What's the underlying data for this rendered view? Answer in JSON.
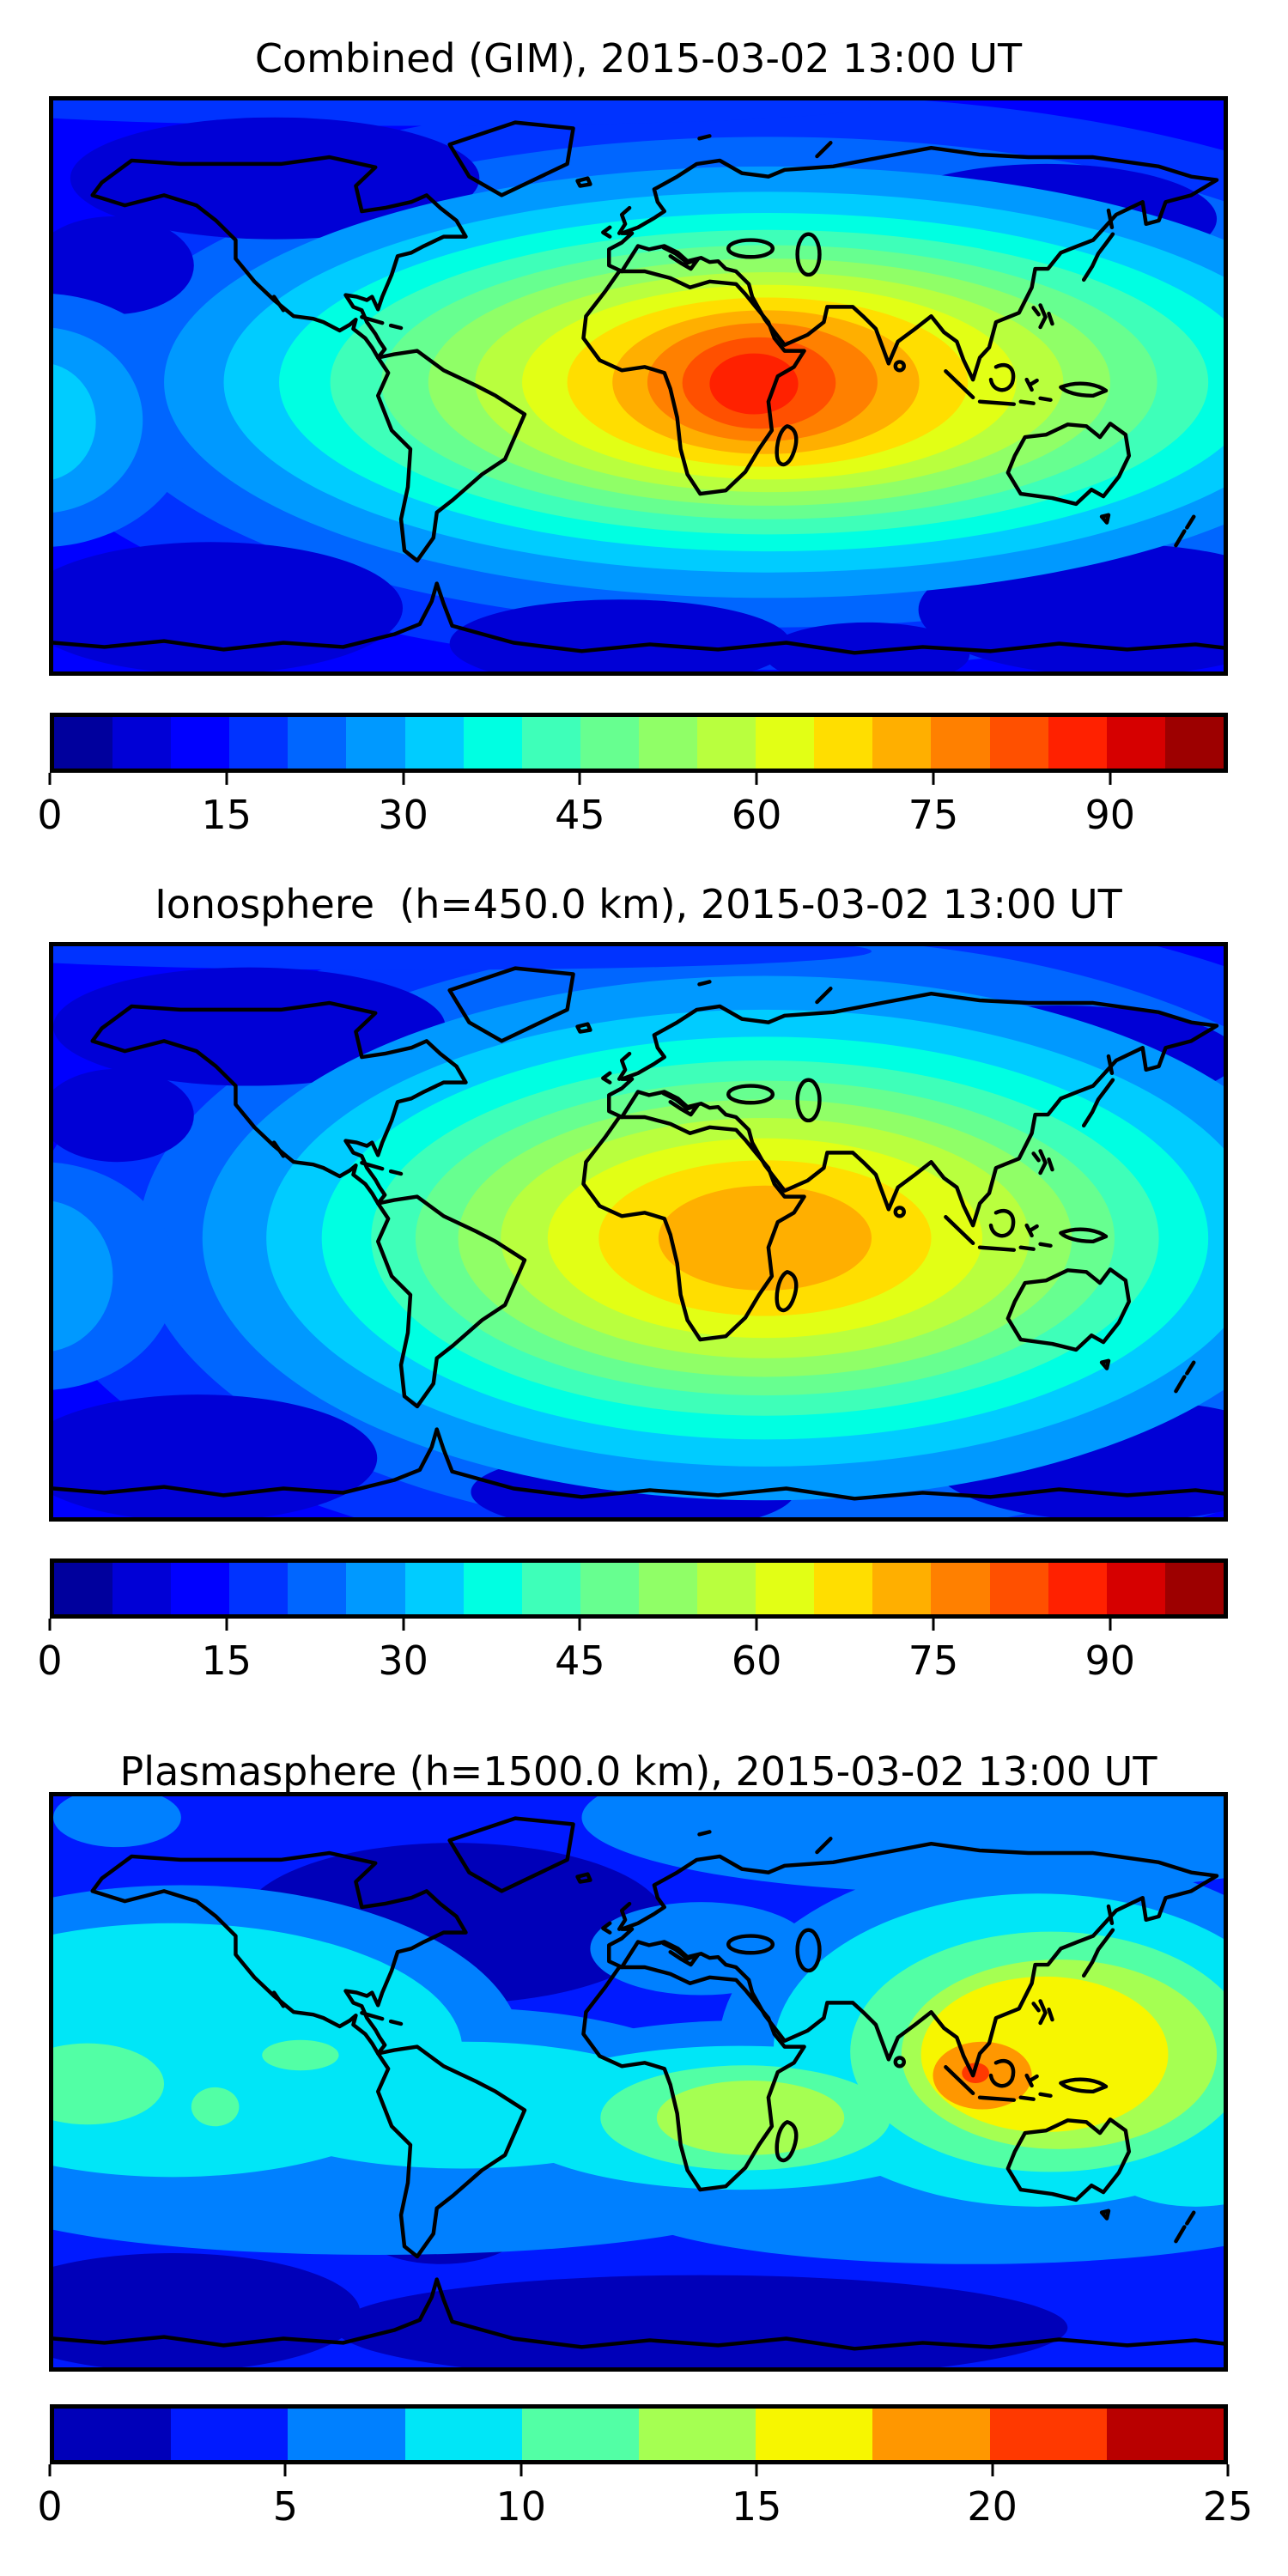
{
  "figure": {
    "background": "#ffffff",
    "text_color": "#000000",
    "frame_color": "#000000"
  },
  "panels": [
    {
      "id": "combined",
      "title_ref": "chart_data.0.title"
    },
    {
      "id": "ionosphere",
      "title_ref": "chart_data.1.title"
    },
    {
      "id": "plasmasphere",
      "title_ref": "chart_data.2.title"
    }
  ],
  "chart_data": [
    {
      "type": "heatmap",
      "subtype": "filled-contour world map (equirectangular)",
      "title": "Combined (GIM), 2015-03-02 13:00 UT",
      "map_extent": {
        "lon": [
          -180,
          180
        ],
        "lat": [
          -90,
          90
        ]
      },
      "colormap": "jet, 20 discrete levels",
      "grid": false,
      "colorbar": {
        "orientation": "horizontal",
        "vmin": 0,
        "vmax": 100,
        "tick_values": [
          0,
          15,
          30,
          45,
          60,
          75,
          90
        ],
        "tick_labels": [
          "0",
          "15",
          "30",
          "45",
          "60",
          "75",
          "90"
        ],
        "colors": [
          "#00009D",
          "#0000D6",
          "#0000FF",
          "#0033FF",
          "#0066FF",
          "#0099FF",
          "#00CCFF",
          "#00FFE2",
          "#3EFFB9",
          "#67FF90",
          "#90FF67",
          "#B9FF3E",
          "#E2FF15",
          "#FFDE00",
          "#FFAF00",
          "#FF8000",
          "#FF5000",
          "#FF2100",
          "#D60000",
          "#9D0000"
        ]
      },
      "features": [
        {
          "name": "primary-maximum",
          "approx_lon_lat": [
            25,
            0
          ],
          "approx_value": 90,
          "note": "red core over central Africa"
        },
        {
          "name": "equatorial-ridge",
          "approx_lon_lat": [
            105,
            10
          ],
          "approx_value": 55,
          "note": "yellow-green ridge extending east over Southeast Asia"
        },
        {
          "name": "west-edge-bump",
          "approx_lon_lat": [
            -178,
            -10
          ],
          "approx_value": 32,
          "note": "small cyan enhancement at western map edge (central Pacific)"
        },
        {
          "name": "background-minimum",
          "approx_value": 8,
          "note": "dark blue at high latitudes and polar oceans"
        }
      ]
    },
    {
      "type": "heatmap",
      "subtype": "filled-contour world map (equirectangular)",
      "title": "Ionosphere  (h=450.0 km), 2015-03-02 13:00 UT",
      "map_extent": {
        "lon": [
          -180,
          180
        ],
        "lat": [
          -90,
          90
        ]
      },
      "colormap": "jet, 20 discrete levels",
      "grid": false,
      "colorbar": {
        "orientation": "horizontal",
        "vmin": 0,
        "vmax": 100,
        "tick_values": [
          0,
          15,
          30,
          45,
          60,
          75,
          90
        ],
        "tick_labels": [
          "0",
          "15",
          "30",
          "45",
          "60",
          "75",
          "90"
        ],
        "colors": [
          "#00009D",
          "#0000D6",
          "#0000FF",
          "#0033FF",
          "#0066FF",
          "#0099FF",
          "#00CCFF",
          "#00FFE2",
          "#3EFFB9",
          "#67FF90",
          "#90FF67",
          "#B9FF3E",
          "#E2FF15",
          "#FFDE00",
          "#FFAF00",
          "#FF8000",
          "#FF5000",
          "#FF2100",
          "#D60000",
          "#9D0000"
        ]
      },
      "features": [
        {
          "name": "primary-maximum",
          "approx_lon_lat": [
            25,
            2
          ],
          "approx_value": 70,
          "note": "orange core over central Africa"
        },
        {
          "name": "equatorial-ridge",
          "approx_lon_lat": [
            100,
            10
          ],
          "approx_value": 42,
          "note": "teal-green extension over Southeast Asia"
        },
        {
          "name": "background-minimum",
          "approx_value": 7,
          "note": "dark blue at high latitudes"
        }
      ]
    },
    {
      "type": "heatmap",
      "subtype": "filled-contour world map (equirectangular)",
      "title": "Plasmasphere (h=1500.0 km), 2015-03-02 13:00 UT",
      "map_extent": {
        "lon": [
          -180,
          180
        ],
        "lat": [
          -90,
          90
        ]
      },
      "colormap": "jet, 10 discrete levels",
      "grid": false,
      "colorbar": {
        "orientation": "horizontal",
        "vmin": 0,
        "vmax": 25,
        "tick_values": [
          0,
          5,
          10,
          15,
          20,
          25
        ],
        "tick_labels": [
          "0",
          "5",
          "10",
          "15",
          "20",
          "25"
        ],
        "colors": [
          "#0000B9",
          "#001AFF",
          "#0080FF",
          "#00E6F7",
          "#52FFA5",
          "#A5FF52",
          "#F7F600",
          "#FF9700",
          "#FF3900",
          "#B90000"
        ]
      },
      "features": [
        {
          "name": "primary-maximum",
          "approx_lon_lat": [
            102,
            5
          ],
          "approx_value": 21,
          "note": "orange spot near the Malay Peninsula with yellow region over India / East Asia"
        },
        {
          "name": "secondary-maximum",
          "approx_lon_lat": [
            22,
            3
          ],
          "approx_value": 13,
          "note": "green-yellow blob over central Africa"
        },
        {
          "name": "equatorial-band",
          "approx_value": 9,
          "note": "cyan band along low latitudes across the Pacific and Atlantic"
        },
        {
          "name": "minimum",
          "approx_lon_lat": [
            -60,
            55
          ],
          "approx_value": 2,
          "note": "dark blue over northeast North America / North Atlantic and southern mid-latitude patches"
        }
      ]
    }
  ]
}
